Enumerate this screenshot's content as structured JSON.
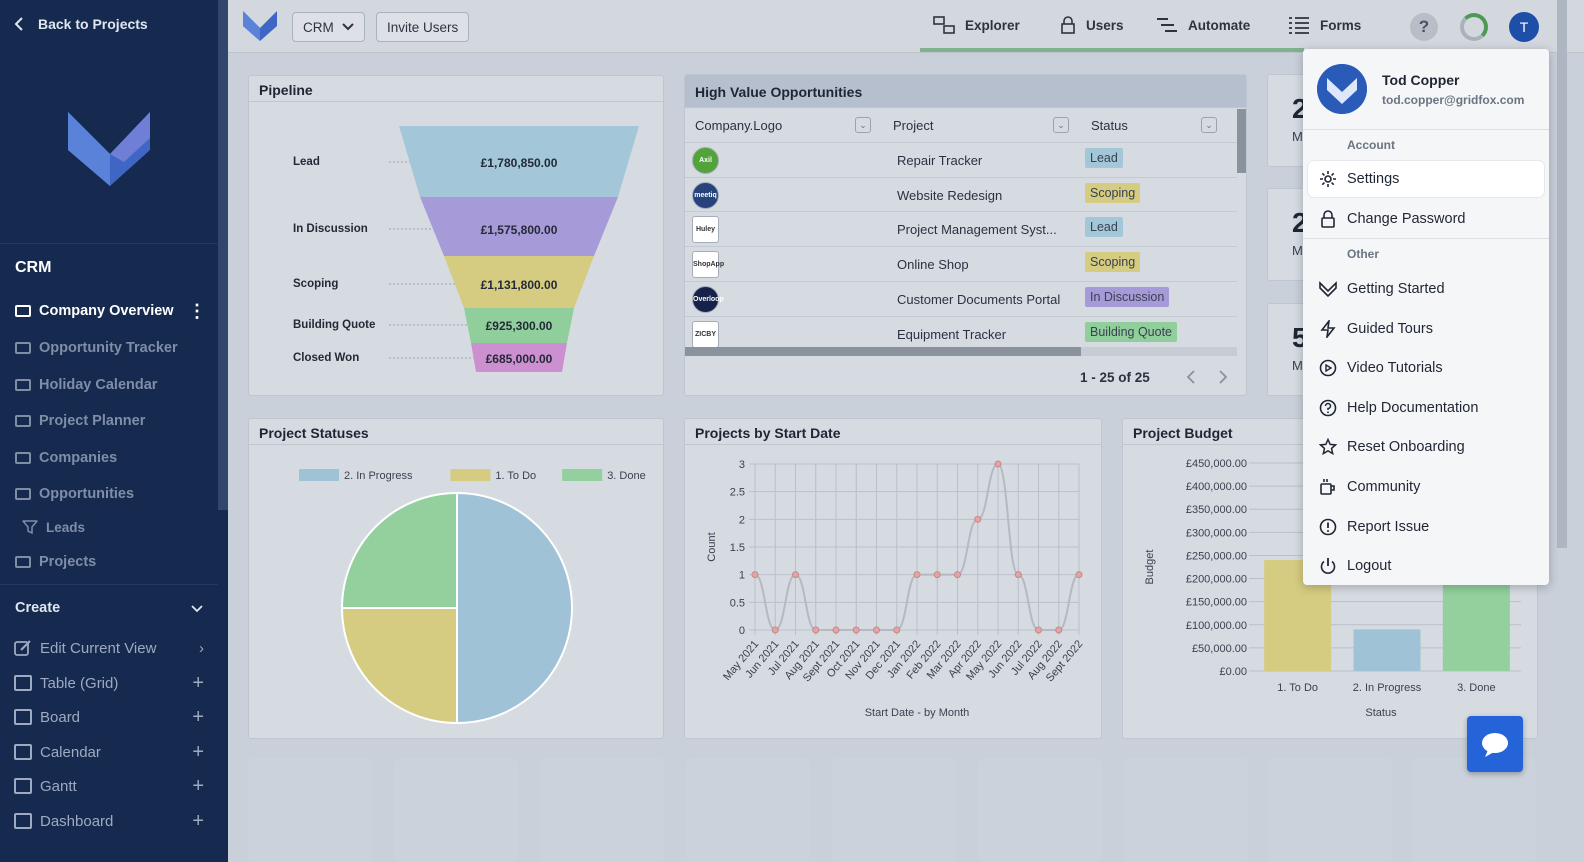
{
  "sidebar": {
    "back_label": "Back to Projects",
    "section_title": "CRM",
    "items": [
      {
        "label": "Company Overview"
      },
      {
        "label": "Opportunity Tracker"
      },
      {
        "label": "Holiday Calendar"
      },
      {
        "label": "Project Planner"
      },
      {
        "label": "Companies"
      },
      {
        "label": "Opportunities"
      },
      {
        "label": "Leads"
      },
      {
        "label": "Projects"
      }
    ],
    "create_label": "Create",
    "tools": [
      {
        "label": "Edit Current View"
      },
      {
        "label": "Table (Grid)"
      },
      {
        "label": "Board"
      },
      {
        "label": "Calendar"
      },
      {
        "label": "Gantt"
      },
      {
        "label": "Dashboard"
      }
    ]
  },
  "topbar": {
    "project_select": "CRM",
    "invite_label": "Invite Users",
    "nav": [
      {
        "label": "Explorer"
      },
      {
        "label": "Users"
      },
      {
        "label": "Automate"
      },
      {
        "label": "Forms"
      }
    ],
    "help": "?",
    "avatar": "T"
  },
  "pipeline": {
    "title": "Pipeline",
    "stages": [
      {
        "label": "Lead",
        "value": "£1,780,850.00",
        "color": "#a3c7d8"
      },
      {
        "label": "In Discussion",
        "value": "£1,575,800.00",
        "color": "#a79ad9"
      },
      {
        "label": "Scoping",
        "value": "£1,131,800.00",
        "color": "#d5cb81"
      },
      {
        "label": "Building Quote",
        "value": "£925,300.00",
        "color": "#90cf9b"
      },
      {
        "label": "Closed Won",
        "value": "£685,000.00",
        "color": "#cc8fcf"
      }
    ]
  },
  "high_value": {
    "title": "High Value Opportunities",
    "columns": [
      "Company.Logo",
      "Project",
      "Status"
    ],
    "rows": [
      {
        "logo": "Axil",
        "logo_color": "#53a33b",
        "project": "Repair Tracker",
        "status": "Lead",
        "status_color": "#a3c7d8"
      },
      {
        "logo": "meetiq",
        "logo_color": "#26437c",
        "project": "Website Redesign",
        "status": "Scoping",
        "status_color": "#d5cb81"
      },
      {
        "logo": "Huley",
        "logo_color": "#ffffff",
        "project": "Project Management Syst...",
        "status": "Lead",
        "status_color": "#a3c7d8"
      },
      {
        "logo": "ShopApp",
        "logo_color": "#ffffff",
        "project": "Online Shop",
        "status": "Scoping",
        "status_color": "#d5cb81"
      },
      {
        "logo": "Overloop",
        "logo_color": "#17224a",
        "project": "Customer Documents Portal",
        "status": "In Discussion",
        "status_color": "#a79ad9"
      },
      {
        "logo": "ZICBY",
        "logo_color": "#ffffff",
        "project": "Equipment Tracker",
        "status": "Building Quote",
        "status_color": "#90cf9b"
      }
    ],
    "pagination": "1 - 25 of 25"
  },
  "stat_cards": [
    {
      "value": "2",
      "label": "M"
    },
    {
      "value": "2",
      "label": "M"
    },
    {
      "value": "5",
      "label": "M"
    }
  ],
  "charts": {
    "statuses_title": "Project Statuses",
    "start_date_title": "Projects by Start Date",
    "budget_title": "Project Budget"
  },
  "chart_data": [
    {
      "type": "pie",
      "title": "Project Statuses",
      "categories": [
        "2. In Progress",
        "1. To Do",
        "3. Done"
      ],
      "values": [
        2,
        1,
        1
      ],
      "colors": [
        "#9fc2d6",
        "#d5cb81",
        "#93d09e"
      ],
      "legend": "top"
    },
    {
      "type": "line",
      "title": "Projects by Start Date",
      "xlabel": "Start Date - by Month",
      "ylabel": "Count",
      "categories": [
        "May 2021",
        "Jun 2021",
        "Jul 2021",
        "Aug 2021",
        "Sept 2021",
        "Oct 2021",
        "Nov 2021",
        "Dec 2021",
        "Jan 2022",
        "Feb 2022",
        "Mar 2022",
        "Apr 2022",
        "May 2022",
        "Jun 2022",
        "Jul 2022",
        "Aug 2022",
        "Sept 2022"
      ],
      "values": [
        1,
        0,
        1,
        0,
        0,
        0,
        0,
        0,
        1,
        1,
        1,
        2,
        3,
        1,
        0,
        0,
        1
      ],
      "ylim": [
        0,
        3
      ],
      "yticks": [
        "0",
        "0.5",
        "1",
        "1.5",
        "2",
        "2.5",
        "3"
      ],
      "grid": true
    },
    {
      "type": "bar",
      "title": "Project Budget",
      "xlabel": "Status",
      "ylabel": "Budget",
      "categories": [
        "1. To Do",
        "2. In Progress",
        "3. Done"
      ],
      "values": [
        240000,
        90000,
        200000
      ],
      "colors": [
        "#d5cb81",
        "#9fc2d6",
        "#93d09e"
      ],
      "ylim": [
        0,
        450000
      ],
      "yticks": [
        "£0.00",
        "£50,000.00",
        "£100,000.00",
        "£150,000.00",
        "£200,000.00",
        "£250,000.00",
        "£300,000.00",
        "£350,000.00",
        "£400,000.00",
        "£450,000.00"
      ]
    }
  ],
  "menu": {
    "name": "Tod Copper",
    "email": "tod.copper@gridfox.com",
    "account_label": "Account",
    "other_label": "Other",
    "account_items": [
      {
        "label": "Settings",
        "icon": "gear-icon"
      },
      {
        "label": "Change Password",
        "icon": "lock-icon"
      }
    ],
    "other_items": [
      {
        "label": "Getting Started",
        "icon": "gridfox-icon"
      },
      {
        "label": "Guided Tours",
        "icon": "lightning-icon"
      },
      {
        "label": "Video Tutorials",
        "icon": "play-icon"
      },
      {
        "label": "Help Documentation",
        "icon": "help-icon"
      },
      {
        "label": "Reset Onboarding",
        "icon": "star-icon"
      },
      {
        "label": "Community",
        "icon": "mug-icon"
      },
      {
        "label": "Report Issue",
        "icon": "alert-icon"
      },
      {
        "label": "Logout",
        "icon": "power-icon"
      }
    ]
  }
}
